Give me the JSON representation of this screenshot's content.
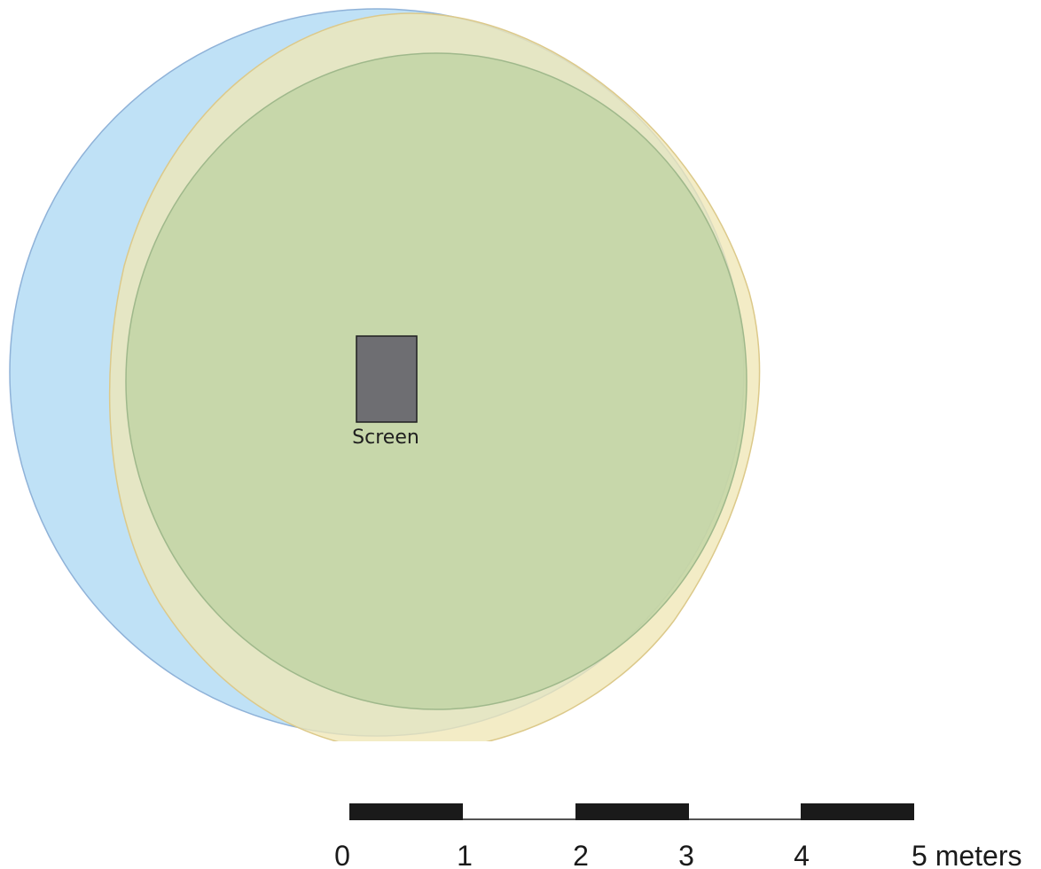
{
  "screen": {
    "label": "Screen",
    "fill_color": "#6e6e72"
  },
  "regions": [
    {
      "name": "blue-region",
      "fill_color": "#bfe1f6",
      "stroke_color": "#8fb2d8"
    },
    {
      "name": "yellow-region",
      "fill_color": "#f0e7b6",
      "stroke_color": "#dcc98a"
    },
    {
      "name": "green-region",
      "fill_color": "#bbd19f",
      "stroke_color": "#9fb88b"
    }
  ],
  "scale_bar": {
    "tick_labels": [
      "0",
      "1",
      "2",
      "3",
      "4",
      "5 meters"
    ],
    "bar_color": "#1a1a1a"
  }
}
